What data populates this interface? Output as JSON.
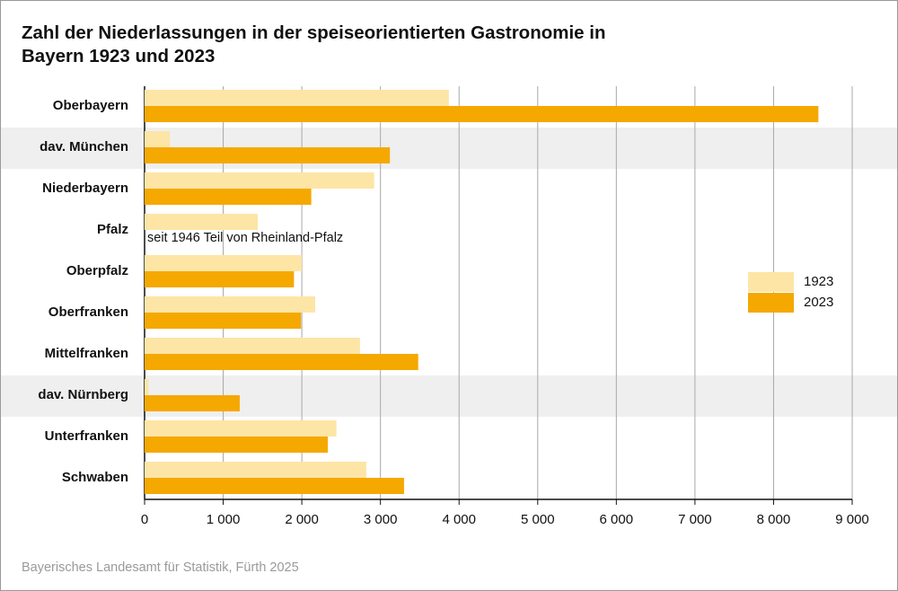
{
  "chart_data": {
    "type": "bar",
    "orientation": "horizontal",
    "title": "Zahl der Niederlassungen in der speiseorientierten Gastronomie in Bayern 1923 und 2023",
    "categories": [
      "Oberbayern",
      "dav. München",
      "Niederbayern",
      "Pfalz",
      "Oberpfalz",
      "Oberfranken",
      "Mittelfranken",
      "dav. Nürnberg",
      "Unterfranken",
      "Schwaben"
    ],
    "highlighted": [
      1,
      7
    ],
    "series": [
      {
        "name": "1923",
        "color": "#fde5a6",
        "values": [
          3870,
          320,
          2920,
          1440,
          2000,
          2170,
          2740,
          50,
          2440,
          2820
        ]
      },
      {
        "name": "2023",
        "color": "#f5a800",
        "values": [
          8570,
          3120,
          2120,
          null,
          1900,
          1990,
          3480,
          1210,
          2330,
          3300
        ]
      }
    ],
    "annotation": "seit 1946 Teil von Rheinland-Pfalz",
    "xlim": [
      0,
      9000
    ],
    "xticks": [
      0,
      {
        "value": 1000,
        "label": "1 000"
      },
      {
        "value": 2000,
        "label": "2 000"
      },
      {
        "value": 3000,
        "label": "3 000"
      },
      {
        "value": 4000,
        "label": "4 000"
      },
      {
        "value": 5000,
        "label": "5 000"
      },
      {
        "value": 6000,
        "label": "6 000"
      },
      {
        "value": 7000,
        "label": "7 000"
      },
      {
        "value": 8000,
        "label": "8 000"
      },
      {
        "value": 9000,
        "label": "9 000"
      }
    ],
    "grid": true,
    "legend": "right",
    "source": "Bayerisches Landesamt für Statistik, Fürth 2025"
  }
}
